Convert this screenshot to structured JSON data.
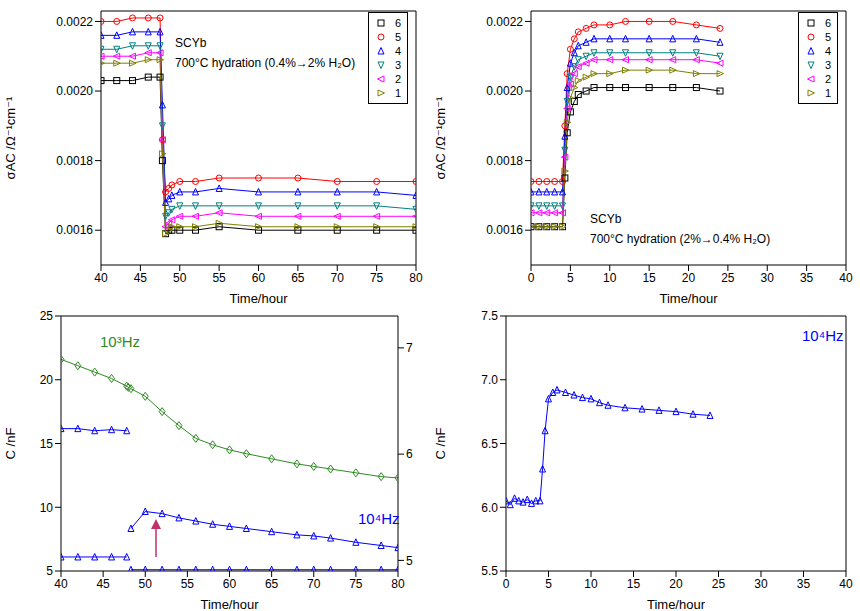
{
  "chart_data": [
    {
      "type": "line",
      "x_label": "Time/hour",
      "y_label": "σAC /Ω⁻¹cm⁻¹",
      "annotations": [
        {
          "text": "SCYb"
        },
        {
          "text": "700°C hydration (0.4%→2% H₂O)"
        }
      ],
      "legend": "upper right",
      "x": [
        40,
        42,
        44,
        46,
        47.5,
        47.8,
        48.2,
        48.6,
        49,
        50,
        52,
        55,
        60,
        65,
        70,
        75,
        80
      ],
      "xlim": [
        40,
        80
      ],
      "xticks": [
        40,
        45,
        50,
        55,
        60,
        65,
        70,
        75,
        80
      ],
      "ylim": [
        0.0015,
        0.00223
      ],
      "yticks": [
        0.0016,
        0.0018,
        {
          "value": 0.002,
          "label": "0.0020"
        },
        0.0022
      ],
      "series": [
        {
          "name": "6",
          "color": "#000000",
          "marker": "square",
          "values": [
            0.00203,
            0.00203,
            0.00203,
            0.00204,
            0.00204,
            0.0018,
            0.00159,
            0.0016,
            0.0016,
            0.0016,
            0.0016,
            0.00161,
            0.0016,
            0.0016,
            0.0016,
            0.0016,
            0.0016
          ]
        },
        {
          "name": "5",
          "color": "#ff0000",
          "marker": "circle",
          "values": [
            0.0022,
            0.0022,
            0.00221,
            0.00221,
            0.00221,
            0.00186,
            0.00171,
            0.00172,
            0.00173,
            0.00174,
            0.00174,
            0.00175,
            0.00175,
            0.00175,
            0.00174,
            0.00174,
            0.00174
          ]
        },
        {
          "name": "4",
          "color": "#0000ff",
          "marker": "triangle",
          "values": [
            0.00216,
            0.00216,
            0.00217,
            0.00217,
            0.00217,
            0.00196,
            0.00168,
            0.00169,
            0.0017,
            0.00171,
            0.00171,
            0.00172,
            0.00171,
            0.00171,
            0.00171,
            0.00171,
            0.0017
          ]
        },
        {
          "name": "3",
          "color": "#008080",
          "marker": "triangle-down",
          "values": [
            0.00212,
            0.00212,
            0.00213,
            0.00213,
            0.00213,
            0.0019,
            0.00164,
            0.00165,
            0.00166,
            0.00167,
            0.00167,
            0.00167,
            0.00167,
            0.00167,
            0.00167,
            0.00167,
            0.00166
          ]
        },
        {
          "name": "2",
          "color": "#ff00ff",
          "marker": "triangle-left",
          "values": [
            0.0021,
            0.0021,
            0.0021,
            0.00211,
            0.00211,
            0.00186,
            0.00161,
            0.00162,
            0.00163,
            0.00164,
            0.00164,
            0.00165,
            0.00164,
            0.00164,
            0.00164,
            0.00164,
            0.00164
          ]
        },
        {
          "name": "1",
          "color": "#808000",
          "marker": "triangle-right",
          "values": [
            0.00208,
            0.00208,
            0.00208,
            0.00209,
            0.00209,
            0.00182,
            0.00159,
            0.0016,
            0.00161,
            0.00161,
            0.00161,
            0.00162,
            0.00161,
            0.00161,
            0.00161,
            0.00161,
            0.00161
          ]
        }
      ]
    },
    {
      "type": "line",
      "x_label": "Time/hour",
      "y_label": "σAC /Ω⁻¹cm⁻¹",
      "annotations": [
        {
          "text": "SCYb"
        },
        {
          "text": "700°C hydration (2%→0.4% H₂O)"
        }
      ],
      "legend": "upper right",
      "x": [
        0,
        1,
        2,
        3,
        4,
        4.3,
        4.6,
        5,
        5.5,
        6,
        7,
        8,
        10,
        12,
        15,
        18,
        21,
        24
      ],
      "xlim": [
        0,
        40
      ],
      "xticks": [
        0,
        5,
        10,
        15,
        20,
        25,
        30,
        35,
        40
      ],
      "ylim": [
        0.0015,
        0.00223
      ],
      "yticks": [
        0.0016,
        0.0018,
        {
          "value": 0.002,
          "label": "0.0020"
        },
        0.0022
      ],
      "series": [
        {
          "name": "6",
          "color": "#000000",
          "marker": "square",
          "values": [
            0.00161,
            0.00161,
            0.00161,
            0.00161,
            0.00161,
            0.00175,
            0.00188,
            0.00194,
            0.00197,
            0.00199,
            0.002,
            0.00201,
            0.00201,
            0.00201,
            0.00201,
            0.00201,
            0.00201,
            0.002
          ]
        },
        {
          "name": "5",
          "color": "#ff0000",
          "marker": "circle",
          "values": [
            0.00174,
            0.00174,
            0.00174,
            0.00174,
            0.00174,
            0.0019,
            0.00205,
            0.00212,
            0.00215,
            0.00217,
            0.00218,
            0.00219,
            0.00219,
            0.0022,
            0.0022,
            0.0022,
            0.00219,
            0.00218
          ]
        },
        {
          "name": "4",
          "color": "#0000ff",
          "marker": "triangle",
          "values": [
            0.00171,
            0.00171,
            0.00171,
            0.00171,
            0.00171,
            0.00187,
            0.00201,
            0.00208,
            0.00211,
            0.00213,
            0.00214,
            0.00215,
            0.00215,
            0.00215,
            0.00215,
            0.00215,
            0.00215,
            0.00214
          ]
        },
        {
          "name": "3",
          "color": "#008080",
          "marker": "triangle-down",
          "values": [
            0.00167,
            0.00167,
            0.00167,
            0.00167,
            0.00167,
            0.00183,
            0.00197,
            0.00204,
            0.00207,
            0.00209,
            0.0021,
            0.00211,
            0.00211,
            0.00211,
            0.00211,
            0.00211,
            0.00211,
            0.0021
          ]
        },
        {
          "name": "2",
          "color": "#ff00ff",
          "marker": "triangle-left",
          "values": [
            0.00165,
            0.00165,
            0.00165,
            0.00165,
            0.00165,
            0.00181,
            0.00195,
            0.00202,
            0.00205,
            0.00207,
            0.00208,
            0.00209,
            0.00209,
            0.00209,
            0.00209,
            0.00209,
            0.00209,
            0.00208
          ]
        },
        {
          "name": "1",
          "color": "#808000",
          "marker": "triangle-right",
          "values": [
            0.00161,
            0.00161,
            0.00161,
            0.00161,
            0.00161,
            0.00177,
            0.00191,
            0.00198,
            0.00201,
            0.00203,
            0.00204,
            0.00205,
            0.00205,
            0.00206,
            0.00206,
            0.00206,
            0.00205,
            0.00205
          ]
        }
      ]
    },
    {
      "type": "line",
      "x_label": "Time/hour",
      "y_label": "C /nF",
      "x": [
        40,
        42,
        44,
        46,
        47.8,
        48,
        48.3,
        50,
        52,
        54,
        56,
        58,
        60,
        62,
        65,
        68,
        70,
        72,
        75,
        78,
        80
      ],
      "xlim": [
        40,
        80
      ],
      "xticks": [
        40,
        45,
        50,
        55,
        60,
        65,
        70,
        75,
        80
      ],
      "ylim": [
        5,
        25
      ],
      "yticks": [
        5,
        10,
        15,
        20,
        25
      ],
      "y2lim": [
        4.9,
        7.3
      ],
      "y2ticks": [
        5,
        6,
        7
      ],
      "series": [
        {
          "name": "10³Hz",
          "color": "#2e8b22",
          "marker": "diamond",
          "values": [
            21.6,
            21.1,
            20.6,
            20.1,
            19.5,
            19.4,
            19.3,
            18.7,
            17.5,
            16.4,
            15.4,
            14.9,
            14.5,
            14.2,
            13.8,
            13.4,
            13.2,
            13.0,
            12.7,
            12.4,
            12.3
          ]
        },
        {
          "name": "10⁴Hz",
          "color": "#0000ff",
          "marker": "triangle",
          "axis": "y2",
          "values": [
            6.24,
            6.24,
            6.22,
            6.23,
            6.22,
            null,
            5.3,
            5.46,
            5.44,
            5.4,
            5.37,
            5.34,
            5.32,
            5.3,
            5.27,
            5.24,
            5.23,
            5.21,
            5.17,
            5.14,
            5.12
          ]
        },
        {
          "color": "#0000ff",
          "marker": "triangle",
          "values": [
            6.1,
            6.1,
            6.1,
            6.1,
            6.1,
            null,
            5.1,
            5.1,
            5.1,
            5.1,
            5.1,
            5.1,
            5.1,
            5.1,
            5.1,
            5.1,
            5.1,
            5.1,
            5.1,
            5.1,
            5.1
          ]
        }
      ]
    },
    {
      "type": "line",
      "x_label": "Time/hour",
      "y_label": "C /nF",
      "x": [
        0,
        0.5,
        1,
        1.5,
        2,
        2.5,
        3,
        3.5,
        4,
        4.3,
        4.6,
        5,
        5.5,
        6,
        7,
        8,
        9,
        10,
        11,
        12,
        14,
        16,
        18,
        20,
        22,
        24
      ],
      "xlim": [
        0,
        40
      ],
      "xticks": [
        0,
        5,
        10,
        15,
        20,
        25,
        30,
        35,
        40
      ],
      "ylim": [
        5.5,
        7.5
      ],
      "yticks": [
        5.5,
        {
          "value": 6,
          "label": "6.0"
        },
        6.5,
        {
          "value": 7,
          "label": "7.0"
        },
        7.5
      ],
      "series": [
        {
          "name": "10⁴Hz",
          "color": "#0000ff",
          "marker": "triangle",
          "values": [
            6.05,
            6.02,
            6.07,
            6.05,
            6.04,
            6.06,
            6.03,
            6.05,
            6.05,
            6.3,
            6.6,
            6.85,
            6.9,
            6.92,
            6.9,
            6.88,
            6.86,
            6.85,
            6.82,
            6.8,
            6.78,
            6.77,
            6.76,
            6.75,
            6.73,
            6.72
          ]
        }
      ]
    }
  ]
}
